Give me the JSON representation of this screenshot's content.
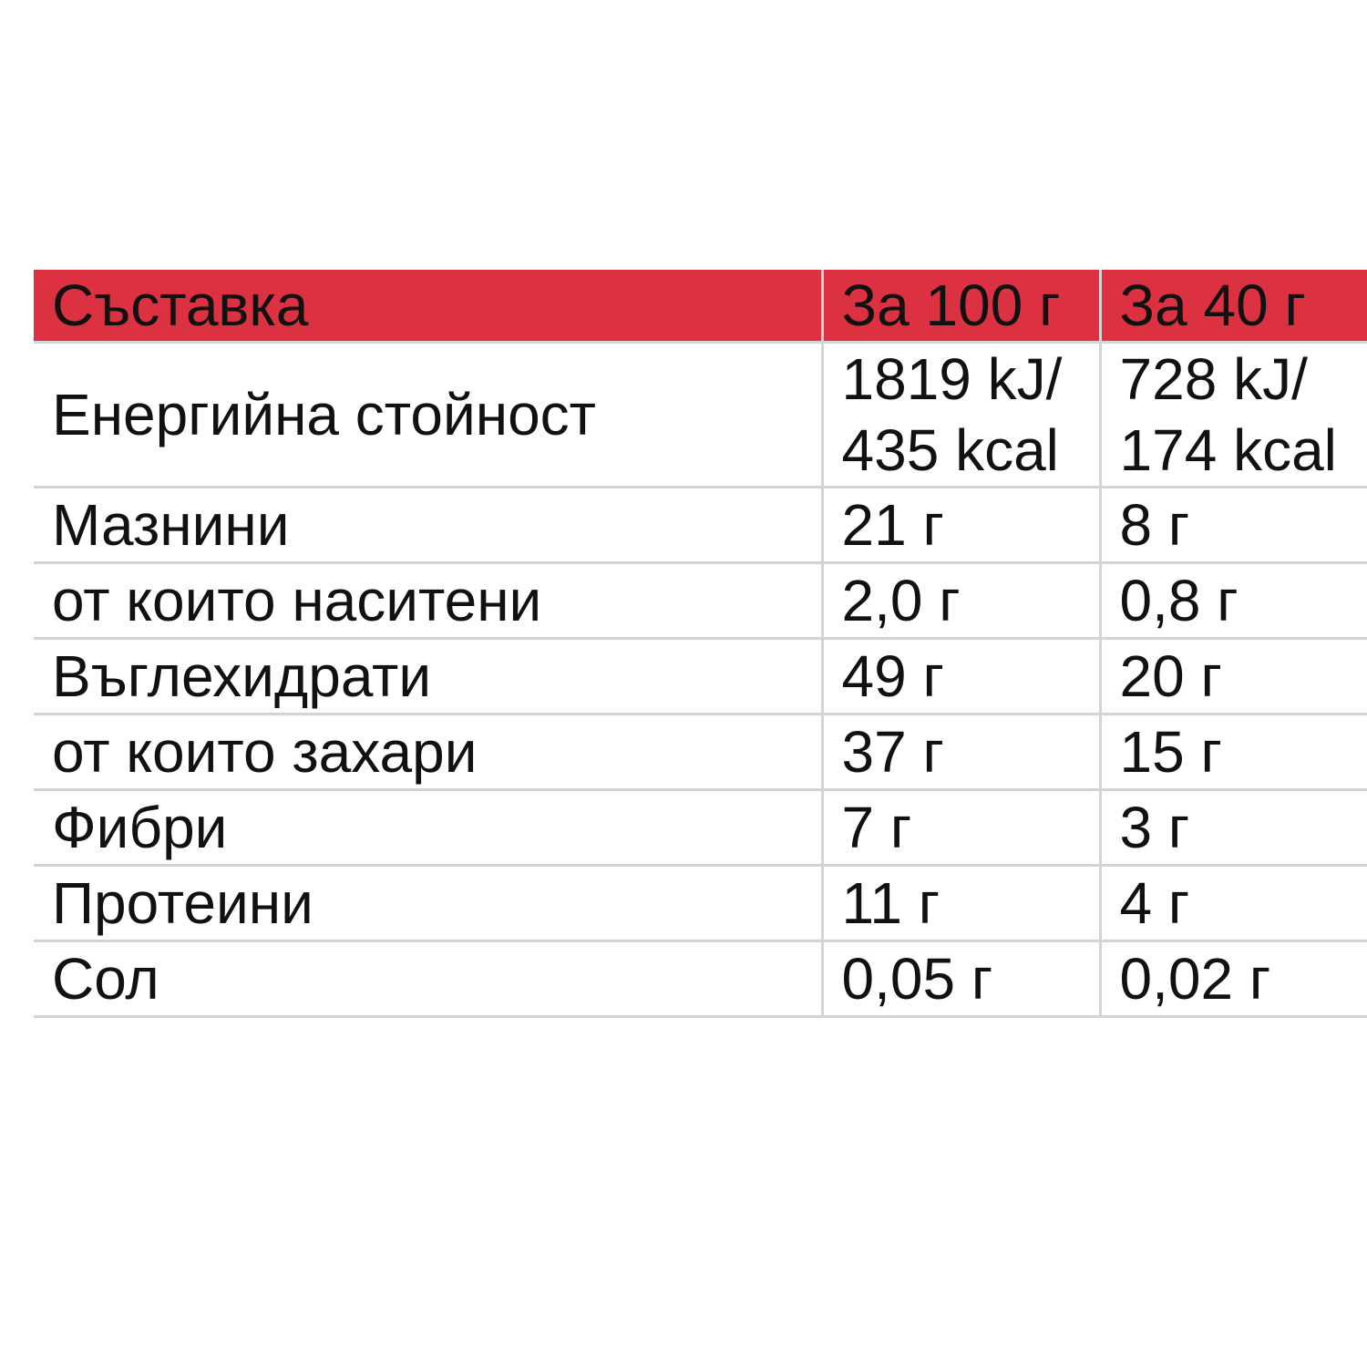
{
  "table": {
    "header": [
      "Съставка",
      "За 100 г",
      "За 40 г"
    ],
    "rows": [
      [
        "Енергийна стойност",
        [
          "1819 kJ/",
          "435 kcal"
        ],
        [
          "728 kJ/",
          "174 kcal"
        ]
      ],
      [
        "Мазнини",
        "21 г",
        "8 г"
      ],
      [
        "от които наситени",
        "2,0 г",
        "0,8 г"
      ],
      [
        "Въглехидрати",
        "49 г",
        "20 г"
      ],
      [
        "от които захари",
        "37 г",
        "15 г"
      ],
      [
        "Фибри",
        "7 г",
        "3 г"
      ],
      [
        "Протеини",
        "11 г",
        "4 г"
      ],
      [
        "Сол",
        "0,05 г",
        "0,02 г"
      ]
    ]
  }
}
